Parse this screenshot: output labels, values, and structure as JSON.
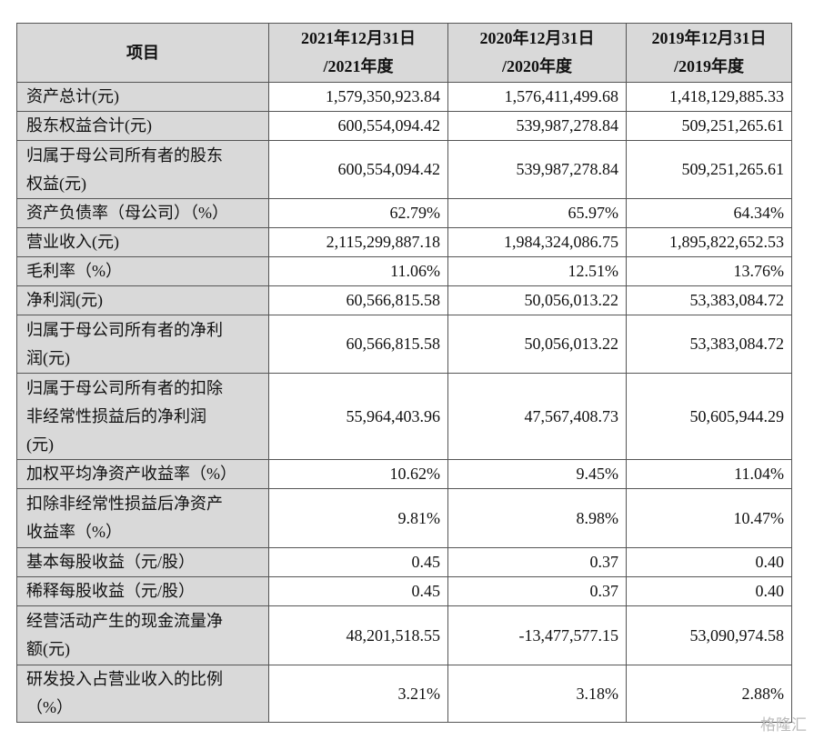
{
  "table": {
    "header": [
      [
        "项目"
      ],
      [
        "2021年12月31日",
        "/2021年度"
      ],
      [
        "2020年12月31日",
        "/2020年度"
      ],
      [
        "2019年12月31日",
        "/2019年度"
      ]
    ],
    "rows": [
      [
        [
          "资产总计(元)"
        ],
        "1,579,350,923.84",
        "1,576,411,499.68",
        "1,418,129,885.33"
      ],
      [
        [
          "股东权益合计(元)"
        ],
        "600,554,094.42",
        "539,987,278.84",
        "509,251,265.61"
      ],
      [
        [
          "归属于母公司所有者的股东",
          "权益(元)"
        ],
        "600,554,094.42",
        "539,987,278.84",
        "509,251,265.61"
      ],
      [
        [
          "资产负债率（母公司）（%）"
        ],
        "62.79%",
        "65.97%",
        "64.34%"
      ],
      [
        [
          "营业收入(元)"
        ],
        "2,115,299,887.18",
        "1,984,324,086.75",
        "1,895,822,652.53"
      ],
      [
        [
          "毛利率（%）"
        ],
        "11.06%",
        "12.51%",
        "13.76%"
      ],
      [
        [
          "净利润(元)"
        ],
        "60,566,815.58",
        "50,056,013.22",
        "53,383,084.72"
      ],
      [
        [
          "归属于母公司所有者的净利",
          "润(元)"
        ],
        "60,566,815.58",
        "50,056,013.22",
        "53,383,084.72"
      ],
      [
        [
          "归属于母公司所有者的扣除",
          "非经常性损益后的净利润",
          "(元)"
        ],
        "55,964,403.96",
        "47,567,408.73",
        "50,605,944.29"
      ],
      [
        [
          "加权平均净资产收益率（%）"
        ],
        "10.62%",
        "9.45%",
        "11.04%"
      ],
      [
        [
          "扣除非经常性损益后净资产",
          "收益率（%）"
        ],
        "9.81%",
        "8.98%",
        "10.47%"
      ],
      [
        [
          "基本每股收益（元/股）"
        ],
        "0.45",
        "0.37",
        "0.40"
      ],
      [
        [
          "稀释每股收益（元/股）"
        ],
        "0.45",
        "0.37",
        "0.40"
      ],
      [
        [
          "经营活动产生的现金流量净",
          "额(元)"
        ],
        "48,201,518.55",
        "-13,477,577.15",
        "53,090,974.58"
      ],
      [
        [
          "研发投入占营业收入的比例",
          "（%）"
        ],
        "3.21%",
        "3.18%",
        "2.88%"
      ]
    ]
  },
  "watermark": "格隆汇"
}
